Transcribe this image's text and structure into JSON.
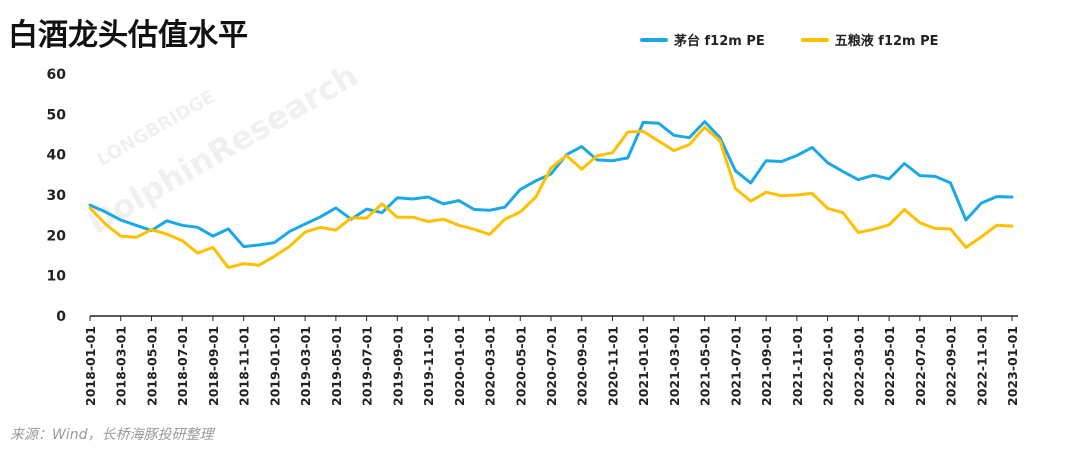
{
  "title": "白酒龙头估值水平",
  "source": "来源：Wind，长桥海豚投研整理",
  "watermark": {
    "line1": "LONGBRIDGE",
    "line2": "DolphinResearch"
  },
  "colors": {
    "maotai": "#1aa9e6",
    "wuliangye": "#ffc000",
    "axis": "#222222",
    "grid": "#ffffff"
  },
  "chart_data": {
    "type": "line",
    "title": "白酒龙头估值水平",
    "ylim": [
      0,
      60
    ],
    "yticks": [
      0,
      10,
      20,
      30,
      40,
      50,
      60
    ],
    "grid": false,
    "legend": "top-right",
    "xticks": [
      "2018-01-01",
      "2018-03-01",
      "2018-05-01",
      "2018-07-01",
      "2018-09-01",
      "2018-11-01",
      "2019-01-01",
      "2019-03-01",
      "2019-05-01",
      "2019-07-01",
      "2019-09-01",
      "2019-11-01",
      "2020-01-01",
      "2020-03-01",
      "2020-05-01",
      "2020-07-01",
      "2020-09-01",
      "2020-11-01",
      "2021-01-01",
      "2021-03-01",
      "2021-05-01",
      "2021-07-01",
      "2021-09-01",
      "2021-11-01",
      "2022-01-01",
      "2022-03-01",
      "2022-05-01",
      "2022-07-01",
      "2022-09-01",
      "2022-11-01",
      "2023-01-01"
    ],
    "x": [
      "2018-01-01",
      "2018-02-01",
      "2018-03-01",
      "2018-04-01",
      "2018-05-01",
      "2018-06-01",
      "2018-07-01",
      "2018-08-01",
      "2018-09-01",
      "2018-10-01",
      "2018-11-01",
      "2018-12-01",
      "2019-01-01",
      "2019-02-01",
      "2019-03-01",
      "2019-04-01",
      "2019-05-01",
      "2019-06-01",
      "2019-07-01",
      "2019-08-01",
      "2019-09-01",
      "2019-10-01",
      "2019-11-01",
      "2019-12-01",
      "2020-01-01",
      "2020-02-01",
      "2020-03-01",
      "2020-04-01",
      "2020-05-01",
      "2020-06-01",
      "2020-07-01",
      "2020-08-01",
      "2020-09-01",
      "2020-10-01",
      "2020-11-01",
      "2020-12-01",
      "2021-01-01",
      "2021-02-01",
      "2021-03-01",
      "2021-04-01",
      "2021-05-01",
      "2021-06-01",
      "2021-07-01",
      "2021-08-01",
      "2021-09-01",
      "2021-10-01",
      "2021-11-01",
      "2021-12-01",
      "2022-01-01",
      "2022-02-01",
      "2022-03-01",
      "2022-04-01",
      "2022-05-01",
      "2022-06-01",
      "2022-07-01",
      "2022-08-01",
      "2022-09-01",
      "2022-10-01",
      "2022-11-01",
      "2022-12-01",
      "2023-01-01"
    ],
    "series": [
      {
        "name": "茅台 f12m PE",
        "color": "#1aa9e6",
        "values": [
          27.5,
          25.8,
          23.8,
          22.5,
          21.2,
          23.6,
          22.5,
          22.0,
          19.8,
          21.6,
          17.2,
          17.6,
          18.2,
          21.0,
          22.8,
          24.6,
          26.8,
          24.0,
          26.5,
          25.6,
          29.3,
          29.0,
          29.5,
          27.8,
          28.6,
          26.4,
          26.2,
          27.0,
          31.4,
          33.5,
          35.2,
          40.0,
          42.0,
          38.7,
          38.5,
          39.2,
          48.0,
          47.8,
          44.8,
          44.2,
          48.2,
          44.2,
          36.0,
          33.0,
          38.5,
          38.3,
          39.8,
          41.8,
          38.0,
          35.8,
          33.8,
          34.9,
          34.0,
          37.8,
          34.8,
          34.6,
          33.0,
          23.8,
          28.0,
          29.6,
          29.5
        ]
      },
      {
        "name": "五粮液 f12m PE",
        "color": "#ffc000",
        "values": [
          26.8,
          22.8,
          19.8,
          19.5,
          21.4,
          20.3,
          18.7,
          15.6,
          17.0,
          12.0,
          13.0,
          12.6,
          14.8,
          17.3,
          20.8,
          22.0,
          21.3,
          24.3,
          24.3,
          27.8,
          24.5,
          24.5,
          23.4,
          24.0,
          22.5,
          21.5,
          20.2,
          24.0,
          25.8,
          29.4,
          36.7,
          39.8,
          36.4,
          39.7,
          40.5,
          45.6,
          45.8,
          43.4,
          41.0,
          42.5,
          46.8,
          43.4,
          31.6,
          28.5,
          30.7,
          29.8,
          30.0,
          30.4,
          26.7,
          25.6,
          20.7,
          21.5,
          22.6,
          26.4,
          23.1,
          21.7,
          21.6,
          17.0,
          19.6,
          22.5,
          22.3
        ]
      }
    ]
  }
}
